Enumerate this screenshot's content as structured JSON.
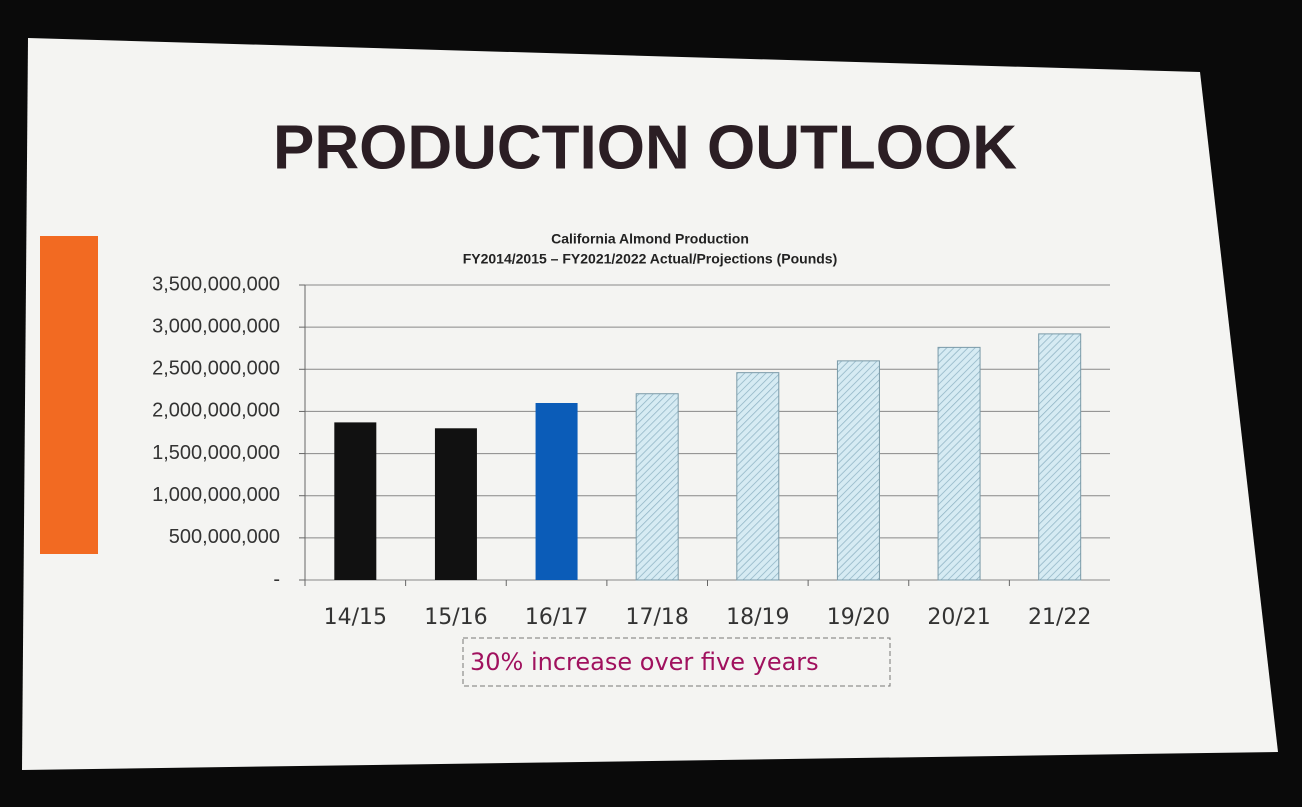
{
  "slide_title": "PRODUCTION OUTLOOK",
  "chart_data": {
    "type": "bar",
    "title": "California Almond Production",
    "subtitle": "FY2014/2015 – FY2021/2022 Actual/Projections (Pounds)",
    "categories": [
      "14/15",
      "15/16",
      "16/17",
      "17/18",
      "18/19",
      "19/20",
      "20/21",
      "21/22"
    ],
    "values": [
      1870000000,
      1800000000,
      2100000000,
      2210000000,
      2460000000,
      2600000000,
      2760000000,
      2920000000
    ],
    "colors": [
      "#111111",
      "#111111",
      "#0b5cb8",
      "#cfe6f0",
      "#cfe6f0",
      "#cfe6f0",
      "#cfe6f0",
      "#cfe6f0"
    ],
    "hatch": [
      false,
      false,
      false,
      true,
      true,
      true,
      true,
      true
    ],
    "ylim": [
      0,
      3500000000
    ],
    "yticks": [
      {
        "value": 0,
        "label": "-"
      },
      {
        "value": 500000000,
        "label": "500,000,000"
      },
      {
        "value": 1000000000,
        "label": "1,000,000,000"
      },
      {
        "value": 1500000000,
        "label": "1,500,000,000"
      },
      {
        "value": 2000000000,
        "label": "2,000,000,000"
      },
      {
        "value": 2500000000,
        "label": "2,500,000,000"
      },
      {
        "value": 3000000000,
        "label": "3,000,000,000"
      },
      {
        "value": 3500000000,
        "label": "3,500,000,000"
      }
    ],
    "grid": true,
    "annotation": "30% increase over five years"
  }
}
